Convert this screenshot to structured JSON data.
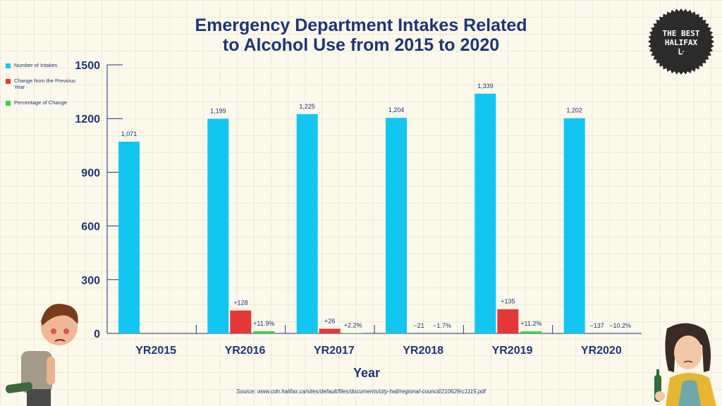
{
  "title_line1": "Emergency Department Intakes Related",
  "title_line2": "to Alcohol Use from 2015 to 2020",
  "legend": [
    {
      "label": "Number of Intakes",
      "color": "#13c6f2"
    },
    {
      "label": "Change from the Previous Year",
      "color": "#e33838"
    },
    {
      "label": "Percentage of Change",
      "color": "#34d63a"
    }
  ],
  "badge": {
    "line1": "THE BEST",
    "line2": "HALIFAX",
    "mark": "ᒷ"
  },
  "source": "Source: www.cdn.halifax.ca/sites/default/files/documents/city-hall/regional-council/210629rc1115.pdf",
  "chart_data": {
    "type": "bar",
    "title": "Emergency Department Intakes Related to Alcohol Use from 2015 to 2020",
    "xlabel": "Year",
    "ylabel": "",
    "ylim": [
      0,
      1500
    ],
    "yticks": [
      0,
      300,
      600,
      900,
      1200,
      1500
    ],
    "categories": [
      "YR2015",
      "YR2016",
      "YR2017",
      "YR2018",
      "YR2019",
      "YR2020"
    ],
    "series": [
      {
        "name": "Number of Intakes",
        "color": "#13c6f2",
        "values": [
          1071,
          1199,
          1225,
          1204,
          1339,
          1202
        ],
        "labels": [
          "1,071",
          "1,199",
          "1,225",
          "1,204",
          "1,339",
          "1,202"
        ]
      },
      {
        "name": "Change from the Previous Year",
        "color": "#e33838",
        "values": [
          null,
          128,
          26,
          -21,
          135,
          -137
        ],
        "labels": [
          "",
          "+128",
          "+26",
          "−21",
          "+135",
          "−137"
        ]
      },
      {
        "name": "Percentage of Change",
        "color": "#34d63a",
        "values": [
          null,
          11.9,
          2.2,
          -1.7,
          11.2,
          -10.2
        ],
        "labels": [
          "",
          "+11.9%",
          "+2.2%",
          "−1.7%",
          "+11.2%",
          "−10.2%"
        ]
      }
    ]
  }
}
